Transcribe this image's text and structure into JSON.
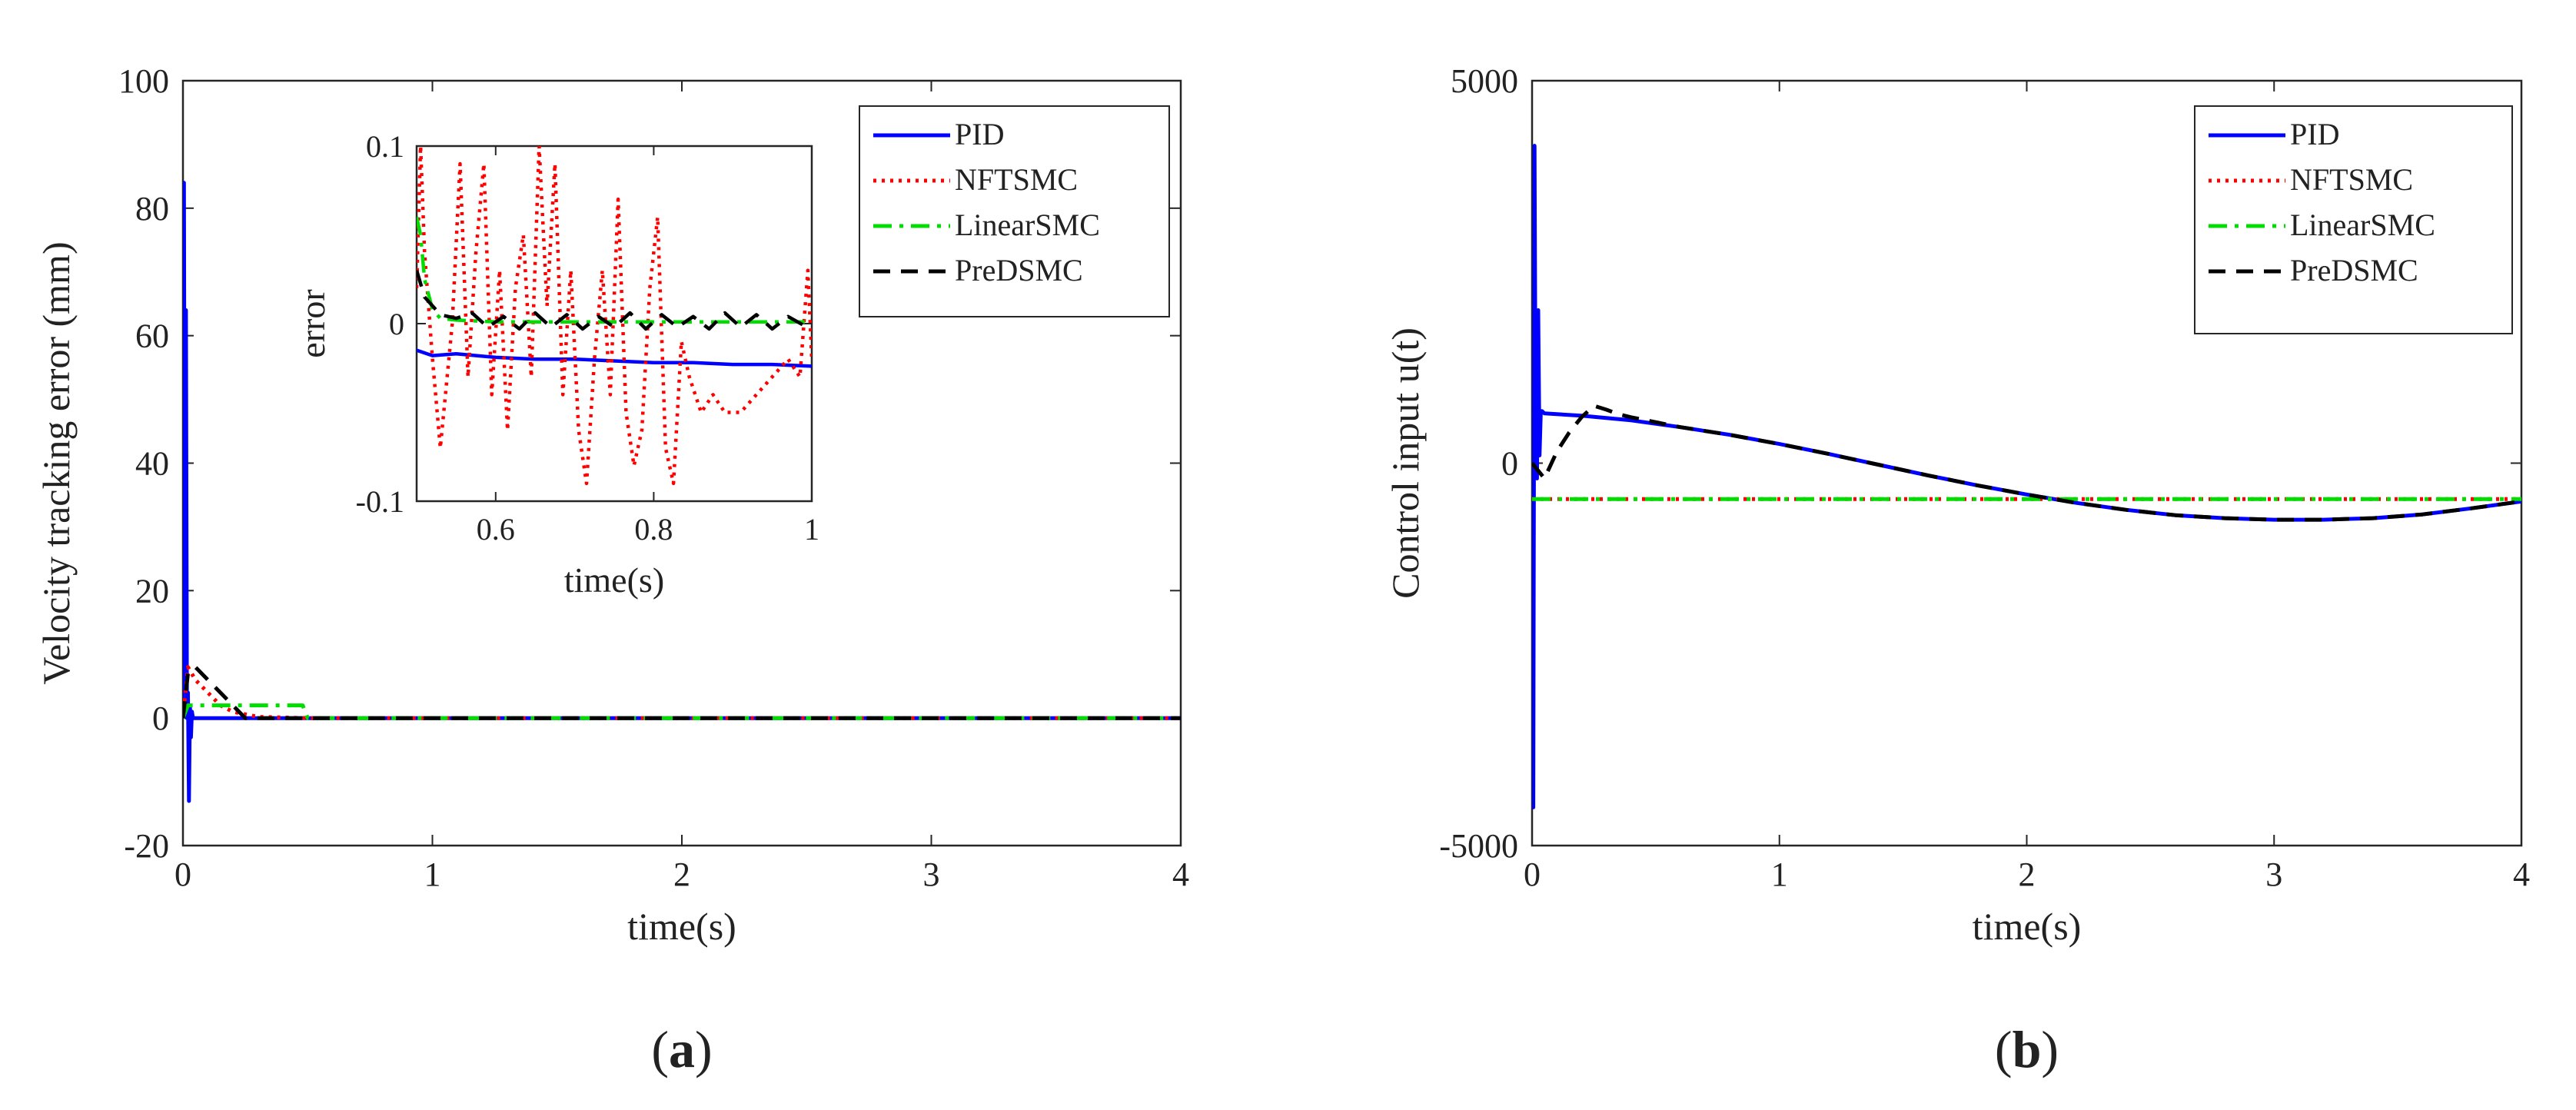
{
  "figure": {
    "panel_labels": [
      "(a)",
      "(b)"
    ]
  },
  "chart_data": [
    {
      "type": "line",
      "panel": "(a)",
      "xlabel": "time(s)",
      "ylabel": "Velocity tracking error (mm)",
      "xlim": [
        0,
        4
      ],
      "ylim": [
        -20,
        100
      ],
      "xticks": [
        0,
        1,
        2,
        3,
        4
      ],
      "yticks": [
        -20,
        0,
        20,
        40,
        60,
        80,
        100
      ],
      "grid": false,
      "legend_position": "top-right",
      "series": [
        {
          "name": "PID",
          "color": "#0000ff",
          "dash": "solid",
          "x": [
            0,
            0.004,
            0.008,
            0.012,
            0.016,
            0.02,
            0.024,
            0.028,
            0.032,
            0.036,
            0.04,
            0.06,
            0.1,
            0.5,
            1,
            2,
            3,
            4
          ],
          "y": [
            0,
            84,
            5,
            64,
            0,
            4,
            -13,
            2,
            -3,
            1,
            0,
            0,
            0,
            0,
            0,
            0,
            0,
            0
          ]
        },
        {
          "name": "NFTSMC",
          "color": "#ff0000",
          "dash": "dotted",
          "x": [
            0,
            0.02,
            0.05,
            0.1,
            0.15,
            0.2,
            0.3,
            0.5,
            1,
            2,
            3,
            4
          ],
          "y": [
            0,
            8,
            6,
            4,
            2,
            1,
            0.2,
            0,
            0,
            0,
            0,
            0
          ]
        },
        {
          "name": "LinearSMC",
          "color": "#00dd00",
          "dash": "dashdot",
          "x": [
            0,
            0.02,
            0.05,
            0.1,
            0.2,
            0.3,
            0.4,
            0.48,
            0.5,
            1,
            2,
            3,
            4
          ],
          "y": [
            0,
            2,
            2,
            2,
            2,
            2,
            2,
            2,
            0,
            0,
            0,
            0,
            0
          ]
        },
        {
          "name": "PreDSMC",
          "color": "#000000",
          "dash": "dashed",
          "x": [
            0,
            0.02,
            0.05,
            0.1,
            0.15,
            0.2,
            0.25,
            0.3,
            0.5,
            1,
            2,
            3,
            4
          ],
          "y": [
            0,
            7,
            8,
            6,
            4,
            2,
            0,
            0,
            0,
            0,
            0,
            0,
            0
          ]
        }
      ],
      "inset": {
        "xlabel": "time(s)",
        "ylabel": "error",
        "xlim": [
          0.5,
          1
        ],
        "ylim": [
          -0.1,
          0.1
        ],
        "xticks": [
          0.6,
          0.8,
          1
        ],
        "yticks": [
          -0.1,
          0,
          0.1
        ],
        "xtick_labels": [
          "0.6",
          "0.8",
          "1"
        ],
        "ytick_labels": [
          "-0.1",
          "0",
          "0.1"
        ],
        "series": [
          {
            "name": "PID",
            "color": "#0000ff",
            "dash": "solid",
            "x": [
              0.5,
              0.52,
              0.55,
              0.6,
              0.65,
              0.7,
              0.75,
              0.8,
              0.85,
              0.9,
              0.95,
              1.0
            ],
            "y": [
              -0.015,
              -0.018,
              -0.017,
              -0.019,
              -0.02,
              -0.02,
              -0.021,
              -0.022,
              -0.022,
              -0.023,
              -0.023,
              -0.024
            ]
          },
          {
            "name": "NFTSMC",
            "color": "#ff0000",
            "dash": "dotted",
            "x": [
              0.5,
              0.505,
              0.51,
              0.52,
              0.53,
              0.545,
              0.555,
              0.565,
              0.575,
              0.585,
              0.595,
              0.605,
              0.615,
              0.625,
              0.635,
              0.645,
              0.655,
              0.665,
              0.675,
              0.685,
              0.695,
              0.705,
              0.715,
              0.725,
              0.735,
              0.745,
              0.755,
              0.765,
              0.775,
              0.785,
              0.795,
              0.805,
              0.815,
              0.825,
              0.835,
              0.845,
              0.86,
              0.875,
              0.89,
              0.9,
              0.91,
              0.93,
              0.95,
              0.97,
              0.985,
              0.995,
              1.0
            ],
            "y": [
              0.02,
              0.1,
              0.04,
              -0.02,
              -0.07,
              0.0,
              0.09,
              -0.03,
              0.04,
              0.09,
              -0.04,
              0.03,
              -0.06,
              0.02,
              0.05,
              -0.03,
              0.1,
              0.01,
              0.09,
              -0.04,
              0.03,
              -0.06,
              -0.09,
              -0.02,
              0.03,
              -0.04,
              0.07,
              -0.05,
              -0.08,
              -0.06,
              0.02,
              0.06,
              -0.07,
              -0.09,
              -0.01,
              -0.03,
              -0.05,
              -0.04,
              -0.05,
              -0.05,
              -0.05,
              -0.04,
              -0.03,
              -0.02,
              -0.03,
              0.03,
              -0.02
            ]
          },
          {
            "name": "LinearSMC",
            "color": "#00dd00",
            "dash": "dashdot",
            "x": [
              0.5,
              0.505,
              0.51,
              0.52,
              0.53,
              0.55,
              0.6,
              0.7,
              0.8,
              0.9,
              1.0
            ],
            "y": [
              0.06,
              0.05,
              0.025,
              0.008,
              0.003,
              0.002,
              0.001,
              0.001,
              0.001,
              0.001,
              0.001
            ]
          },
          {
            "name": "PreDSMC",
            "color": "#000000",
            "dash": "dashed",
            "x": [
              0.5,
              0.51,
              0.52,
              0.53,
              0.55,
              0.57,
              0.59,
              0.61,
              0.63,
              0.65,
              0.67,
              0.69,
              0.71,
              0.73,
              0.75,
              0.77,
              0.79,
              0.81,
              0.83,
              0.85,
              0.87,
              0.89,
              0.91,
              0.93,
              0.95,
              0.97,
              0.99,
              1.0
            ],
            "y": [
              0.03,
              0.015,
              0.01,
              0.005,
              0.003,
              0.006,
              -0.002,
              0.004,
              -0.003,
              0.006,
              -0.002,
              0.005,
              -0.003,
              0.004,
              -0.002,
              0.006,
              -0.003,
              0.005,
              -0.002,
              0.004,
              -0.003,
              0.006,
              -0.002,
              0.005,
              -0.003,
              0.004,
              -0.001,
              0.002
            ]
          }
        ]
      }
    },
    {
      "type": "line",
      "panel": "(b)",
      "xlabel": "time(s)",
      "ylabel": "Control input u(t)",
      "xlim": [
        0,
        4
      ],
      "ylim": [
        -5000,
        5000
      ],
      "xticks": [
        0,
        1,
        2,
        3,
        4
      ],
      "yticks": [
        -5000,
        0,
        5000
      ],
      "ytick_labels": [
        "-5000",
        "0",
        "5000"
      ],
      "grid": false,
      "legend_position": "top-right",
      "series": [
        {
          "name": "PID",
          "color": "#0000ff",
          "dash": "solid",
          "x": [
            0,
            0.005,
            0.01,
            0.015,
            0.02,
            0.025,
            0.03,
            0.035,
            0.04,
            0.05,
            0.1,
            0.2,
            0.4,
            0.6,
            0.8,
            1.0,
            1.2,
            1.4,
            1.6,
            1.8,
            2.0,
            2.2,
            2.4,
            2.6,
            2.8,
            3.0,
            3.2,
            3.4,
            3.6,
            3.8,
            4.0
          ],
          "y": [
            0,
            -4500,
            4150,
            0,
            -200,
            2000,
            100,
            650,
            680,
            650,
            640,
            620,
            560,
            470,
            370,
            250,
            120,
            -20,
            -160,
            -290,
            -410,
            -520,
            -610,
            -680,
            -720,
            -740,
            -740,
            -720,
            -670,
            -590,
            -500
          ]
        },
        {
          "name": "NFTSMC",
          "color": "#ff0000",
          "dash": "dotted",
          "x": [
            0,
            0.5,
            1,
            1.5,
            2,
            2.5,
            3,
            3.5,
            4
          ],
          "y": [
            -470,
            -470,
            -470,
            -470,
            -470,
            -470,
            -470,
            -470,
            -470
          ]
        },
        {
          "name": "LinearSMC",
          "color": "#00dd00",
          "dash": "dashdot",
          "x": [
            0,
            0.5,
            1,
            1.5,
            2,
            2.5,
            3,
            3.5,
            4
          ],
          "y": [
            -470,
            -470,
            -470,
            -470,
            -470,
            -470,
            -470,
            -470,
            -470
          ]
        },
        {
          "name": "PreDSMC",
          "color": "#000000",
          "dash": "dashed",
          "x": [
            0,
            0.05,
            0.1,
            0.15,
            0.2,
            0.25,
            0.3,
            0.35,
            0.4,
            0.6,
            0.8,
            1.0,
            1.2,
            1.4,
            1.6,
            1.8,
            2.0,
            2.2,
            2.4,
            2.6,
            2.8,
            3.0,
            3.2,
            3.4,
            3.6,
            3.8,
            4.0
          ],
          "y": [
            0,
            -200,
            150,
            400,
            600,
            750,
            700,
            640,
            600,
            470,
            370,
            250,
            120,
            -20,
            -160,
            -290,
            -410,
            -520,
            -610,
            -680,
            -720,
            -740,
            -740,
            -720,
            -670,
            -590,
            -500
          ]
        }
      ]
    }
  ]
}
